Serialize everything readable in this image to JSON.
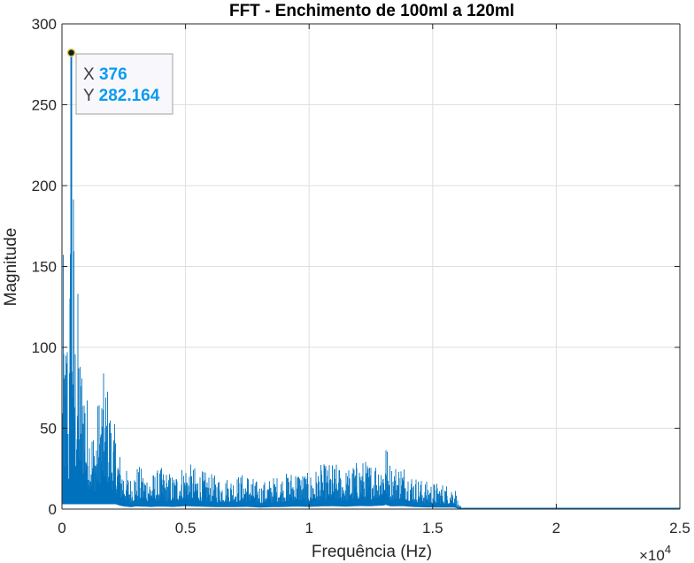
{
  "chart_data": {
    "type": "line",
    "title": "FFT - Enchimento de 100ml a 120ml",
    "xlabel": "Frequência (Hz)",
    "ylabel": "Magnitude",
    "x_exponent_label": "×10",
    "x_exponent_power": "4",
    "xlim": [
      0,
      25000
    ],
    "ylim": [
      0,
      300
    ],
    "x_ticks": [
      0,
      5000,
      10000,
      15000,
      20000,
      25000
    ],
    "x_tick_labels": [
      "0",
      "0.5",
      "1",
      "1.5",
      "2",
      "2.5"
    ],
    "y_ticks": [
      0,
      50,
      100,
      150,
      200,
      250,
      300
    ],
    "y_tick_labels": [
      "0",
      "50",
      "100",
      "150",
      "200",
      "250",
      "300"
    ],
    "grid": true,
    "series": [
      {
        "color": "#0072bd",
        "envelope": [
          {
            "x": 0,
            "y": 6
          },
          {
            "x": 60,
            "y": 176
          },
          {
            "x": 120,
            "y": 95
          },
          {
            "x": 200,
            "y": 150
          },
          {
            "x": 280,
            "y": 60
          },
          {
            "x": 376,
            "y": 282.164
          },
          {
            "x": 460,
            "y": 223
          },
          {
            "x": 550,
            "y": 110
          },
          {
            "x": 650,
            "y": 140
          },
          {
            "x": 750,
            "y": 100
          },
          {
            "x": 900,
            "y": 105
          },
          {
            "x": 1000,
            "y": 75
          },
          {
            "x": 1150,
            "y": 60
          },
          {
            "x": 1300,
            "y": 52
          },
          {
            "x": 1450,
            "y": 68
          },
          {
            "x": 1600,
            "y": 84
          },
          {
            "x": 1800,
            "y": 85
          },
          {
            "x": 2000,
            "y": 62
          },
          {
            "x": 2200,
            "y": 48
          },
          {
            "x": 2400,
            "y": 32
          },
          {
            "x": 2600,
            "y": 25
          },
          {
            "x": 2800,
            "y": 20
          },
          {
            "x": 3000,
            "y": 28
          },
          {
            "x": 3300,
            "y": 25
          },
          {
            "x": 3600,
            "y": 22
          },
          {
            "x": 4000,
            "y": 26
          },
          {
            "x": 4500,
            "y": 22
          },
          {
            "x": 5000,
            "y": 30
          },
          {
            "x": 5500,
            "y": 25
          },
          {
            "x": 6000,
            "y": 22
          },
          {
            "x": 6500,
            "y": 20
          },
          {
            "x": 7000,
            "y": 21
          },
          {
            "x": 7500,
            "y": 23
          },
          {
            "x": 8000,
            "y": 16
          },
          {
            "x": 8500,
            "y": 20
          },
          {
            "x": 9000,
            "y": 22
          },
          {
            "x": 9500,
            "y": 26
          },
          {
            "x": 10000,
            "y": 22
          },
          {
            "x": 10500,
            "y": 28
          },
          {
            "x": 11000,
            "y": 29
          },
          {
            "x": 11500,
            "y": 25
          },
          {
            "x": 12000,
            "y": 31
          },
          {
            "x": 12500,
            "y": 30
          },
          {
            "x": 13000,
            "y": 36
          },
          {
            "x": 13100,
            "y": 44
          },
          {
            "x": 13300,
            "y": 28
          },
          {
            "x": 13800,
            "y": 30
          },
          {
            "x": 14200,
            "y": 22
          },
          {
            "x": 14600,
            "y": 18
          },
          {
            "x": 15000,
            "y": 17
          },
          {
            "x": 15500,
            "y": 16
          },
          {
            "x": 15900,
            "y": 15
          },
          {
            "x": 16050,
            "y": 3
          },
          {
            "x": 16200,
            "y": 0.5
          },
          {
            "x": 25000,
            "y": 0.5
          }
        ]
      }
    ],
    "data_tip": {
      "x_key": "X",
      "x_value": "376",
      "y_key": "Y",
      "y_value": "282.164",
      "point": {
        "x": 376,
        "y": 282.164
      }
    }
  }
}
